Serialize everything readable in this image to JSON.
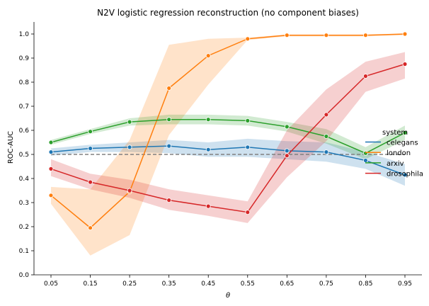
{
  "chart_data": {
    "type": "line",
    "title": "N2V logistic regression reconstruction (no component biases)",
    "xlabel": "θ",
    "ylabel": "ROC-AUC",
    "x": [
      0.05,
      0.15,
      0.25,
      0.35,
      0.45,
      0.55,
      0.65,
      0.75,
      0.85,
      0.95
    ],
    "x_tick_labels": [
      "0.05",
      "0.15",
      "0.25",
      "0.35",
      "0.45",
      "0.55",
      "0.65",
      "0.75",
      "0.85",
      "0.95"
    ],
    "ylim": [
      0,
      1.05
    ],
    "y_ticks": [
      0,
      0.1,
      0.2,
      0.3,
      0.4,
      0.5,
      0.6,
      0.7,
      0.8,
      0.9,
      1.0
    ],
    "y_tick_labels": [
      "0.0",
      "0.1",
      "0.2",
      "0.3",
      "0.4",
      "0.5",
      "0.6",
      "0.7",
      "0.8",
      "0.9",
      "1.0"
    ],
    "grid": false,
    "reference_line": {
      "y": 0.5,
      "style": "dashed",
      "color": "#808080"
    },
    "legend": {
      "title": "system",
      "position": "right"
    },
    "series": [
      {
        "name": "celegans",
        "color": "#1f77b4",
        "values": [
          0.51,
          0.525,
          0.53,
          0.535,
          0.52,
          0.53,
          0.515,
          0.51,
          0.475,
          0.415
        ],
        "ci_lower": [
          0.495,
          0.51,
          0.51,
          0.505,
          0.49,
          0.49,
          0.48,
          0.47,
          0.44,
          0.37
        ],
        "ci_upper": [
          0.525,
          0.54,
          0.55,
          0.56,
          0.55,
          0.565,
          0.555,
          0.55,
          0.51,
          0.46
        ]
      },
      {
        "name": "london",
        "color": "#ff7f0e",
        "values": [
          0.33,
          0.195,
          0.345,
          0.775,
          0.91,
          0.98,
          0.995,
          0.995,
          0.995,
          1.0
        ],
        "ci_lower": [
          0.295,
          0.08,
          0.165,
          0.58,
          0.79,
          0.975,
          0.99,
          0.99,
          0.99,
          0.995
        ],
        "ci_upper": [
          0.365,
          0.355,
          0.56,
          0.955,
          0.98,
          0.985,
          0.998,
          0.998,
          0.998,
          1.0
        ]
      },
      {
        "name": "arxiv",
        "color": "#2ca02c",
        "values": [
          0.55,
          0.595,
          0.635,
          0.645,
          0.645,
          0.64,
          0.615,
          0.575,
          0.505,
          0.59
        ],
        "ci_lower": [
          0.54,
          0.585,
          0.62,
          0.625,
          0.625,
          0.62,
          0.595,
          0.545,
          0.48,
          0.56
        ],
        "ci_upper": [
          0.56,
          0.605,
          0.65,
          0.665,
          0.665,
          0.66,
          0.635,
          0.605,
          0.53,
          0.62
        ]
      },
      {
        "name": "drosophila",
        "color": "#d62728",
        "values": [
          0.44,
          0.385,
          0.35,
          0.31,
          0.285,
          0.26,
          0.495,
          0.665,
          0.825,
          0.875
        ],
        "ci_lower": [
          0.41,
          0.355,
          0.32,
          0.27,
          0.245,
          0.215,
          0.405,
          0.555,
          0.76,
          0.815
        ],
        "ci_upper": [
          0.48,
          0.42,
          0.395,
          0.355,
          0.33,
          0.305,
          0.6,
          0.77,
          0.885,
          0.925
        ]
      }
    ]
  }
}
